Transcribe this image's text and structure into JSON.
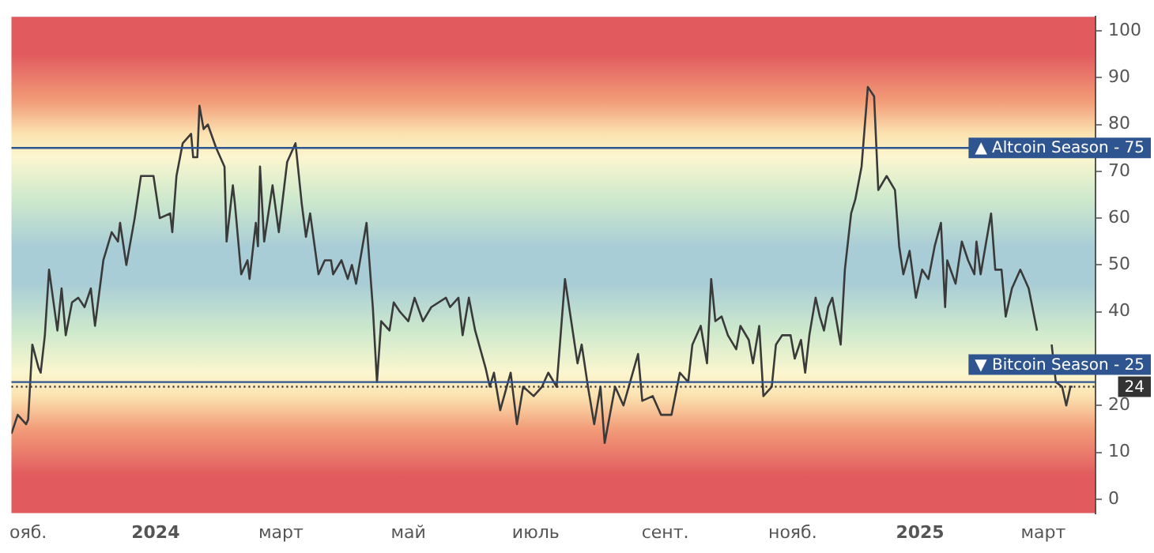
{
  "chart_data": {
    "type": "line",
    "x": [
      "2023-10-24",
      "2023-10-27",
      "2023-10-31",
      "2023-11-01",
      "2023-11-03",
      "2023-11-06",
      "2023-11-07",
      "2023-11-09",
      "2023-11-11",
      "2023-11-15",
      "2023-11-17",
      "2023-11-19",
      "2023-11-22",
      "2023-11-25",
      "2023-11-28",
      "2023-12-01",
      "2023-12-03",
      "2023-12-07",
      "2023-12-11",
      "2023-12-14",
      "2023-12-15",
      "2023-12-18",
      "2023-12-22",
      "2023-12-25",
      "2023-12-31",
      "2024-01-03",
      "2024-01-08",
      "2024-01-09",
      "2024-01-11",
      "2024-01-14",
      "2024-01-18",
      "2024-01-19",
      "2024-01-21",
      "2024-01-22",
      "2024-01-24",
      "2024-01-26",
      "2024-01-30",
      "2024-02-03",
      "2024-02-04",
      "2024-02-07",
      "2024-02-08",
      "2024-02-11",
      "2024-02-14",
      "2024-02-15",
      "2024-02-18",
      "2024-02-19",
      "2024-02-20",
      "2024-02-22",
      "2024-02-26",
      "2024-02-29",
      "2024-03-04",
      "2024-03-08",
      "2024-03-11",
      "2024-03-13",
      "2024-03-15",
      "2024-03-19",
      "2024-03-22",
      "2024-03-25",
      "2024-03-26",
      "2024-03-30",
      "2024-04-02",
      "2024-04-04",
      "2024-04-06",
      "2024-04-11",
      "2024-04-14",
      "2024-04-16",
      "2024-04-18",
      "2024-04-22",
      "2024-04-24",
      "2024-04-27",
      "2024-05-01",
      "2024-05-04",
      "2024-05-08",
      "2024-05-12",
      "2024-05-19",
      "2024-05-21",
      "2024-05-25",
      "2024-05-27",
      "2024-05-30",
      "2024-06-02",
      "2024-06-07",
      "2024-06-09",
      "2024-06-11",
      "2024-06-14",
      "2024-06-19",
      "2024-06-22",
      "2024-06-25",
      "2024-06-30",
      "2024-07-04",
      "2024-07-07",
      "2024-07-11",
      "2024-07-15",
      "2024-07-18",
      "2024-07-21",
      "2024-07-23",
      "2024-07-26",
      "2024-07-29",
      "2024-08-01",
      "2024-08-03",
      "2024-08-08",
      "2024-08-12",
      "2024-08-19",
      "2024-08-21",
      "2024-08-26",
      "2024-08-30",
      "2024-09-04",
      "2024-09-08",
      "2024-09-12",
      "2024-09-14",
      "2024-09-18",
      "2024-09-21",
      "2024-09-23",
      "2024-09-25",
      "2024-09-28",
      "2024-10-01",
      "2024-10-05",
      "2024-10-07",
      "2024-10-11",
      "2024-10-13",
      "2024-10-16",
      "2024-10-18",
      "2024-10-22",
      "2024-10-24",
      "2024-10-27",
      "2024-10-31",
      "2024-11-02",
      "2024-11-05",
      "2024-11-07",
      "2024-11-09",
      "2024-11-12",
      "2024-11-14",
      "2024-11-16",
      "2024-11-18",
      "2024-11-20",
      "2024-11-24",
      "2024-11-26",
      "2024-11-29",
      "2024-12-01",
      "2024-12-04",
      "2024-12-07",
      "2024-12-10",
      "2024-12-12",
      "2024-12-16",
      "2024-12-20",
      "2024-12-22",
      "2024-12-24",
      "2024-12-27",
      "2024-12-30",
      "2025-01-02",
      "2025-01-05",
      "2025-01-08",
      "2025-01-11",
      "2025-01-13",
      "2025-01-14",
      "2025-01-18",
      "2025-01-21",
      "2025-01-24",
      "2025-01-27",
      "2025-01-28",
      "2025-01-30",
      "2025-02-04",
      "2025-02-06",
      "2025-02-09",
      "2025-02-11",
      "2025-02-14",
      "2025-02-18",
      "2025-02-22",
      "2025-02-26",
      "2025-03-01",
      "2025-03-05",
      "2025-03-07",
      "2025-03-10",
      "2025-03-12",
      "2025-03-14",
      "2025-03-15"
    ],
    "series": [
      {
        "color": "#3a3a3a",
        "values": [
          14,
          18,
          16,
          17,
          33,
          28,
          27,
          35,
          49,
          36,
          45,
          35,
          42,
          43,
          41,
          45,
          37,
          51,
          57,
          55,
          59,
          50,
          60,
          69,
          69,
          60,
          61,
          57,
          69,
          76,
          78,
          73,
          73,
          84,
          79,
          80,
          75,
          71,
          55,
          67,
          63,
          48,
          51,
          47,
          59,
          54,
          71,
          55,
          67,
          57,
          72,
          76,
          63,
          56,
          61,
          48,
          51,
          51,
          48,
          51,
          47,
          50,
          46,
          59,
          41,
          25,
          38,
          36,
          42,
          40,
          38,
          43,
          38,
          41,
          43,
          41,
          43,
          35,
          43,
          36,
          28,
          24,
          27,
          19,
          27,
          16,
          24,
          22,
          24,
          27,
          24,
          47,
          38,
          29,
          33,
          24,
          16,
          24,
          12,
          24,
          20,
          31,
          21,
          22,
          18,
          18,
          27,
          25,
          33,
          37,
          29,
          47,
          38,
          39,
          35,
          32,
          37,
          34,
          29,
          37,
          22,
          24,
          33,
          35,
          35,
          30,
          34,
          27,
          35,
          43,
          39,
          36,
          41,
          43,
          33,
          49,
          61,
          64,
          71,
          88,
          86,
          66,
          69,
          66,
          54,
          48,
          53,
          43,
          49,
          47,
          54,
          59,
          41,
          51,
          46,
          55,
          51,
          48,
          55,
          48,
          61,
          49,
          49,
          39,
          45,
          49,
          45,
          36,
          null,
          33,
          25,
          24,
          20,
          24,
          24
        ]
      }
    ],
    "xlim": [
      "2023-10-24",
      "2025-03-26"
    ],
    "xticks": [
      {
        "value": "2023-11-01",
        "label": "ояб."
      },
      {
        "value": "2024-01-01",
        "label": "2024"
      },
      {
        "value": "2024-03-01",
        "label": "март"
      },
      {
        "value": "2024-05-01",
        "label": "май"
      },
      {
        "value": "2024-07-01",
        "label": "июль"
      },
      {
        "value": "2024-09-01",
        "label": "сент."
      },
      {
        "value": "2024-11-01",
        "label": "нояб."
      },
      {
        "value": "2025-01-01",
        "label": "2025"
      },
      {
        "value": "2025-03-01",
        "label": "март"
      }
    ],
    "ylim": [
      -3,
      103
    ],
    "yticks": [
      0,
      10,
      20,
      {
        "value": 30,
        "label": null
      },
      40,
      50,
      60,
      70,
      80,
      90,
      100
    ],
    "ref_lines": [
      {
        "axis": "y",
        "value": 75,
        "label": "▲ Altcoin Season - 75",
        "color": "#2f5590",
        "line_style": "solid"
      },
      {
        "axis": "y",
        "value": 24,
        "label": "24",
        "color": "#333333",
        "line_style": "dotted"
      },
      {
        "axis": "y",
        "value": 25,
        "label": "▼ Bitcoin Season - 25",
        "color": "#2f5590",
        "line_style": "solid"
      }
    ]
  }
}
